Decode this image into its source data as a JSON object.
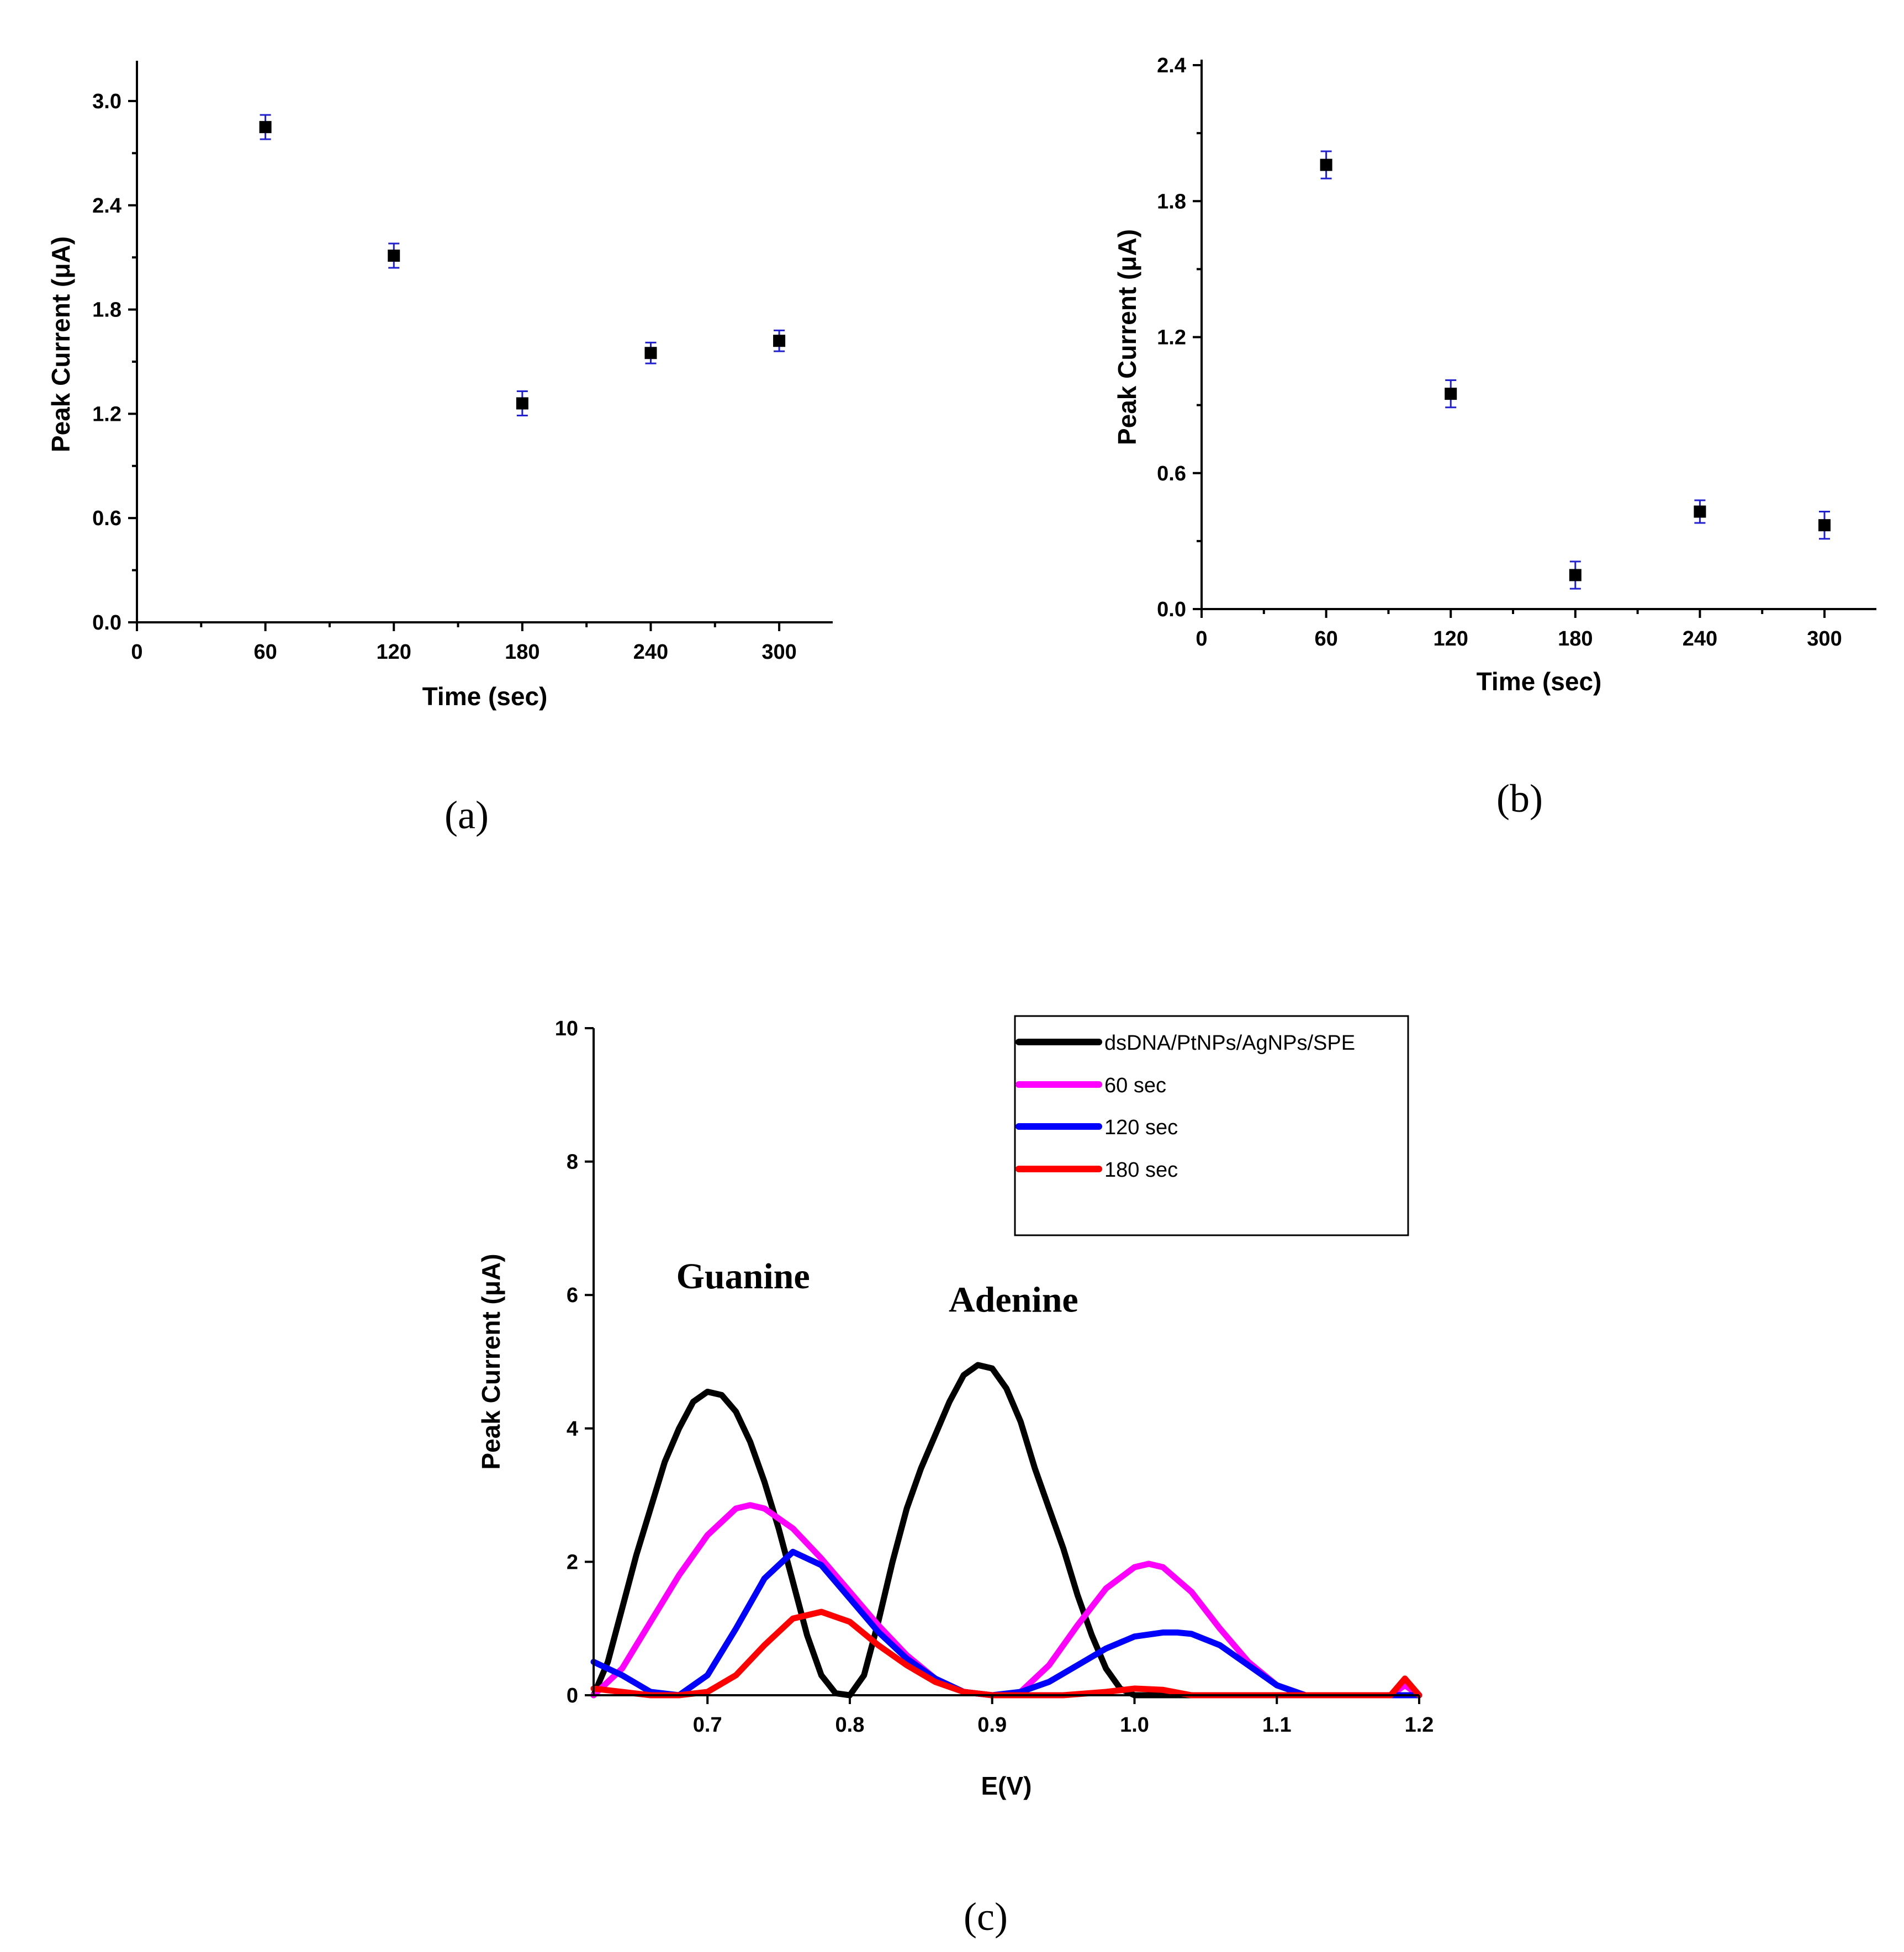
{
  "chart_data": [
    {
      "id": "a",
      "type": "scatter",
      "panel_label": "(a)",
      "xlabel": "Time (sec)",
      "ylabel": "Peak Current (μA)",
      "xlim": [
        0,
        325
      ],
      "ylim": [
        0,
        3.2
      ],
      "xticks": [
        0,
        60,
        120,
        180,
        240,
        300
      ],
      "yticks": [
        0.0,
        0.6,
        1.2,
        1.8,
        2.4,
        3.0
      ],
      "ytick_labels": [
        "0.0",
        "0.6",
        "1.2",
        "1.8",
        "2.4",
        "3.0"
      ],
      "x": [
        60,
        120,
        180,
        240,
        300
      ],
      "y": [
        2.85,
        2.11,
        1.26,
        1.55,
        1.62
      ],
      "yerr": [
        0.07,
        0.07,
        0.07,
        0.06,
        0.06
      ]
    },
    {
      "id": "b",
      "type": "scatter",
      "panel_label": "(b)",
      "xlabel": "Time (sec)",
      "ylabel": "Peak Current (μA)",
      "xlim": [
        0,
        325
      ],
      "ylim": [
        0,
        2.4
      ],
      "xticks": [
        0,
        60,
        120,
        180,
        240,
        300
      ],
      "yticks": [
        0.0,
        0.6,
        1.2,
        1.8,
        2.4
      ],
      "ytick_labels": [
        "0.0",
        "0.6",
        "1.2",
        "1.8",
        "2.4"
      ],
      "x": [
        60,
        120,
        180,
        240,
        300
      ],
      "y": [
        1.96,
        0.95,
        0.15,
        0.43,
        0.37
      ],
      "yerr": [
        0.06,
        0.06,
        0.06,
        0.05,
        0.06
      ]
    },
    {
      "id": "c",
      "type": "line",
      "panel_label": "(c)",
      "xlabel": "E(V)",
      "ylabel": "Peak Current (μA)",
      "xlim": [
        0.62,
        1.2
      ],
      "ylim": [
        0,
        10
      ],
      "xticks": [
        0.7,
        0.8,
        0.9,
        1.0,
        1.1,
        1.2
      ],
      "xtick_labels": [
        "0.7",
        "0.8",
        "0.9",
        "1.0",
        "1.1",
        "1.2"
      ],
      "yticks": [
        0,
        2,
        4,
        6,
        8,
        10
      ],
      "ytick_labels": [
        "0",
        "2",
        "4",
        "6",
        "8",
        "10"
      ],
      "annotations": [
        {
          "text": "Guanine",
          "x": 0.725,
          "y": 6.1
        },
        {
          "text": "Adenine",
          "x": 0.915,
          "y": 5.75
        }
      ],
      "legend_position": "top-right",
      "series": [
        {
          "name": "dsDNA/PtNPs/AgNPs/SPE",
          "color": "#000000",
          "x": [
            0.62,
            0.63,
            0.64,
            0.65,
            0.66,
            0.67,
            0.68,
            0.69,
            0.7,
            0.71,
            0.72,
            0.73,
            0.74,
            0.75,
            0.76,
            0.77,
            0.78,
            0.79,
            0.8,
            0.81,
            0.82,
            0.83,
            0.84,
            0.85,
            0.86,
            0.87,
            0.88,
            0.89,
            0.9,
            0.91,
            0.92,
            0.93,
            0.94,
            0.95,
            0.96,
            0.97,
            0.98,
            0.99,
            1.0,
            1.01,
            1.02,
            1.05,
            1.1,
            1.15,
            1.2
          ],
          "y": [
            0.0,
            0.5,
            1.3,
            2.1,
            2.8,
            3.5,
            4.0,
            4.4,
            4.55,
            4.5,
            4.25,
            3.8,
            3.2,
            2.5,
            1.7,
            0.9,
            0.3,
            0.03,
            0.0,
            0.3,
            1.1,
            2.0,
            2.8,
            3.4,
            3.9,
            4.4,
            4.8,
            4.95,
            4.9,
            4.6,
            4.1,
            3.4,
            2.8,
            2.2,
            1.5,
            0.9,
            0.4,
            0.1,
            0.0,
            0.0,
            0.0,
            0.0,
            0.0,
            0.0,
            0.0
          ]
        },
        {
          "name": "60 sec",
          "color": "#ff00ff",
          "x": [
            0.62,
            0.64,
            0.66,
            0.68,
            0.7,
            0.72,
            0.73,
            0.74,
            0.76,
            0.78,
            0.8,
            0.82,
            0.84,
            0.86,
            0.88,
            0.9,
            0.91,
            0.92,
            0.94,
            0.96,
            0.98,
            1.0,
            1.01,
            1.02,
            1.04,
            1.06,
            1.08,
            1.1,
            1.12,
            1.15,
            1.18,
            1.19,
            1.2
          ],
          "y": [
            0.0,
            0.4,
            1.1,
            1.8,
            2.4,
            2.8,
            2.85,
            2.8,
            2.5,
            2.05,
            1.55,
            1.05,
            0.6,
            0.25,
            0.05,
            0.0,
            0.0,
            0.05,
            0.45,
            1.05,
            1.6,
            1.92,
            1.97,
            1.92,
            1.55,
            1.0,
            0.5,
            0.15,
            0.0,
            0.0,
            0.0,
            0.15,
            0.0
          ]
        },
        {
          "name": "120 sec",
          "color": "#0000ff",
          "x": [
            0.62,
            0.64,
            0.66,
            0.68,
            0.7,
            0.72,
            0.74,
            0.76,
            0.78,
            0.8,
            0.82,
            0.84,
            0.86,
            0.88,
            0.9,
            0.92,
            0.94,
            0.96,
            0.98,
            1.0,
            1.02,
            1.03,
            1.04,
            1.06,
            1.08,
            1.1,
            1.12,
            1.15,
            1.2
          ],
          "y": [
            0.5,
            0.3,
            0.05,
            0.0,
            0.3,
            1.0,
            1.75,
            2.15,
            1.95,
            1.45,
            0.95,
            0.55,
            0.25,
            0.05,
            0.0,
            0.05,
            0.2,
            0.45,
            0.7,
            0.88,
            0.94,
            0.94,
            0.92,
            0.75,
            0.45,
            0.15,
            0.0,
            0.0,
            0.0
          ]
        },
        {
          "name": "180 sec",
          "color": "#ff0000",
          "x": [
            0.62,
            0.64,
            0.66,
            0.68,
            0.7,
            0.72,
            0.74,
            0.76,
            0.78,
            0.8,
            0.82,
            0.84,
            0.86,
            0.88,
            0.9,
            0.95,
            0.98,
            1.0,
            1.02,
            1.04,
            1.06,
            1.1,
            1.15,
            1.18,
            1.19,
            1.2
          ],
          "y": [
            0.1,
            0.05,
            0.0,
            0.0,
            0.05,
            0.3,
            0.75,
            1.15,
            1.25,
            1.1,
            0.75,
            0.45,
            0.2,
            0.05,
            0.0,
            0.0,
            0.05,
            0.1,
            0.08,
            0.0,
            0.0,
            0.0,
            0.0,
            0.0,
            0.25,
            0.0
          ]
        }
      ]
    }
  ]
}
